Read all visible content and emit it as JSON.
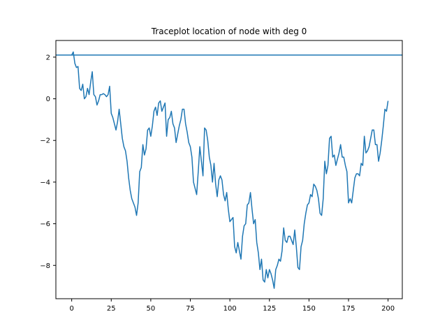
{
  "chart_data": {
    "type": "line",
    "title": "Traceplot location of node with deg 0",
    "xlabel": "",
    "ylabel": "",
    "xlim": [
      -10,
      209
    ],
    "ylim": [
      -9.6,
      2.8
    ],
    "xticks": [
      0,
      25,
      50,
      75,
      100,
      125,
      150,
      175,
      200
    ],
    "yticks": [
      2,
      0,
      -2,
      -4,
      -6,
      -8
    ],
    "grid": false,
    "line_color": "#1f77b4",
    "hline": {
      "y": 2.1,
      "color": "#1f77b4"
    },
    "series": [
      {
        "values": [
          2.1,
          2.25,
          1.7,
          1.5,
          1.55,
          0.5,
          0.4,
          0.7,
          0.0,
          0.1,
          0.5,
          0.2,
          0.8,
          1.3,
          0.2,
          0.1,
          -0.3,
          -0.1,
          0.2,
          0.2,
          0.25,
          0.2,
          0.1,
          0.2,
          0.6,
          -0.7,
          -0.9,
          -1.2,
          -1.5,
          -1.1,
          -0.5,
          -1.2,
          -1.9,
          -2.3,
          -2.5,
          -3.0,
          -3.8,
          -4.4,
          -4.8,
          -5.0,
          -5.2,
          -5.6,
          -5.0,
          -3.5,
          -3.3,
          -2.2,
          -2.7,
          -2.4,
          -1.5,
          -1.4,
          -1.8,
          -1.3,
          -0.6,
          -0.4,
          -0.8,
          -0.2,
          -0.1,
          -0.6,
          -0.4,
          -0.2,
          -1.8,
          -1.0,
          -0.9,
          -0.6,
          -1.2,
          -1.4,
          -2.1,
          -1.7,
          -1.3,
          -1.0,
          -0.5,
          -0.5,
          -1.2,
          -1.6,
          -2.1,
          -2.3,
          -2.8,
          -4.0,
          -4.3,
          -4.6,
          -3.5,
          -2.3,
          -3.0,
          -3.7,
          -1.4,
          -1.5,
          -2.0,
          -2.8,
          -3.2,
          -4.0,
          -3.1,
          -4.1,
          -4.7,
          -3.9,
          -3.7,
          -3.9,
          -4.6,
          -4.9,
          -4.5,
          -5.3,
          -5.9,
          -5.8,
          -5.7,
          -7.1,
          -7.4,
          -6.9,
          -7.3,
          -7.7,
          -6.6,
          -6.1,
          -6.0,
          -5.1,
          -5.0,
          -4.5,
          -5.3,
          -6.0,
          -5.8,
          -6.9,
          -7.4,
          -8.2,
          -7.7,
          -8.7,
          -8.8,
          -8.2,
          -8.6,
          -8.2,
          -8.4,
          -8.7,
          -9.1,
          -8.2,
          -8.0,
          -7.7,
          -7.8,
          -7.3,
          -6.2,
          -6.8,
          -6.9,
          -6.6,
          -6.6,
          -6.8,
          -7.0,
          -6.3,
          -7.1,
          -8.1,
          -8.2,
          -7.1,
          -6.8,
          -6.0,
          -5.5,
          -5.1,
          -5.0,
          -4.6,
          -4.7,
          -4.1,
          -4.2,
          -4.4,
          -4.8,
          -5.5,
          -5.6,
          -4.8,
          -3.0,
          -3.6,
          -3.2,
          -1.9,
          -1.8,
          -2.8,
          -2.7,
          -3.2,
          -2.9,
          -2.6,
          -2.2,
          -2.8,
          -2.8,
          -3.2,
          -3.5,
          -5.0,
          -4.8,
          -5.0,
          -4.4,
          -3.8,
          -3.6,
          -3.6,
          -3.7,
          -3.1,
          -3.2,
          -1.8,
          -2.6,
          -2.5,
          -2.3,
          -1.9,
          -1.5,
          -1.5,
          -2.2,
          -2.2,
          -3.0,
          -2.6,
          -2.0,
          -1.3,
          -0.5,
          -0.6,
          -0.1
        ]
      }
    ]
  }
}
